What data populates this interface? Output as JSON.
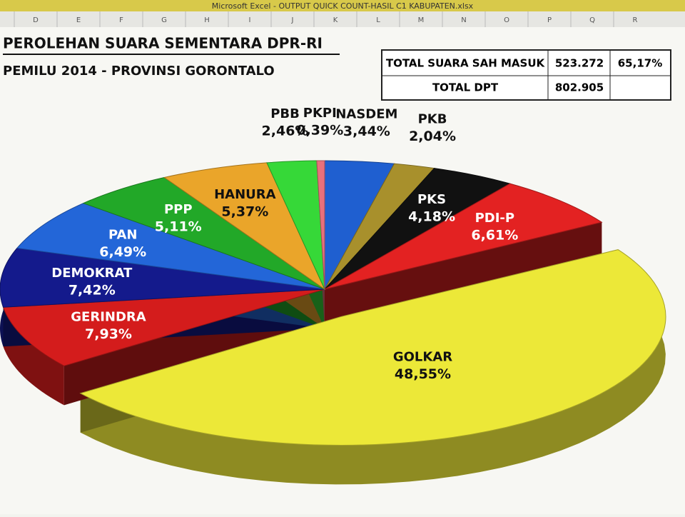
{
  "window_title": "Microsoft Excel - OUTPUT QUICK COUNT-HASIL C1 KABUPATEN.xlsx",
  "columns": [
    "D",
    "E",
    "F",
    "G",
    "H",
    "I",
    "J",
    "K",
    "L",
    "M",
    "N",
    "O",
    "P",
    "Q",
    "R"
  ],
  "header": {
    "title": "PEROLEHAN SUARA SEMENTARA DPR-RI",
    "subtitle": "PEMILU 2014 - PROVINSI GORONTALO"
  },
  "summary": {
    "rows": [
      [
        "TOTAL SUARA SAH MASUK",
        "523.272",
        "65,17%"
      ],
      [
        "TOTAL DPT",
        "802.905"
      ]
    ]
  },
  "chart_data": {
    "type": "pie",
    "categories": [
      "NASDEM",
      "PKB",
      "PKS",
      "PDI-P",
      "GOLKAR",
      "GERINDRA",
      "DEMOKRAT",
      "PAN",
      "PPP",
      "HANURA",
      "PBB",
      "PKPI"
    ],
    "values": [
      3.44,
      2.04,
      4.18,
      6.61,
      48.55,
      7.93,
      7.42,
      6.49,
      5.11,
      5.37,
      2.46,
      0.39
    ],
    "value_labels": [
      "3,44%",
      "2,04%",
      "4,18%",
      "6,61%",
      "48,55%",
      "7,93%",
      "7,42%",
      "6,49%",
      "5,11%",
      "5,37%",
      "2,46%",
      "0,39%"
    ],
    "colors": [
      "#1f5fd0",
      "#a8902c",
      "#111111",
      "#e32222",
      "#ece838",
      "#d41c1c",
      "#141a8c",
      "#2366d8",
      "#22a828",
      "#eaa52a",
      "#36d838",
      "#e8707c"
    ]
  }
}
